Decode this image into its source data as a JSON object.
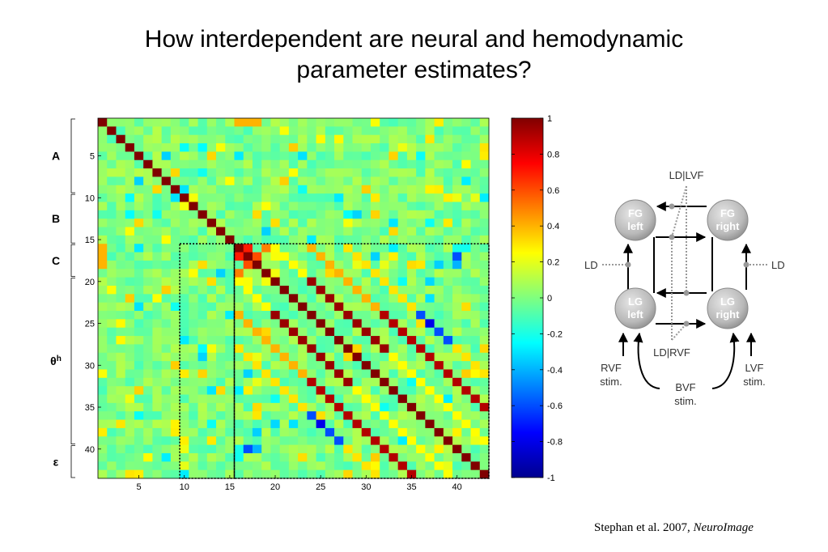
{
  "title_line1": "How interdependent are neural and hemodynamic",
  "title_line2": "parameter estimates?",
  "citation": {
    "text": "Stephan et al. 2007, ",
    "journal": "NeuroImage"
  },
  "chart_data": {
    "type": "heatmap",
    "title": "",
    "matrix_size": 43,
    "x_ticks": [
      5,
      10,
      15,
      20,
      25,
      30,
      35,
      40
    ],
    "y_ticks": [
      5,
      10,
      15,
      20,
      25,
      30,
      35,
      40
    ],
    "clim": [
      -1,
      1
    ],
    "colorbar_ticks": [
      "1",
      "0.8",
      "0.6",
      "0.4",
      "0.2",
      "0",
      "-0.2",
      "-0.4",
      "-0.6",
      "-0.8",
      "-1"
    ],
    "colormap": "jet",
    "groups": [
      {
        "label": "A",
        "from": 1,
        "to": 9
      },
      {
        "label": "B",
        "from": 10,
        "to": 15
      },
      {
        "label": "C",
        "from": 16,
        "to": 19
      },
      {
        "label": "θh",
        "from": 20,
        "to": 39
      },
      {
        "label": "ε",
        "from": 40,
        "to": 43
      }
    ],
    "diagonal_value": 1,
    "highlighted_blocks": [
      {
        "rows": [
          16,
          43
        ],
        "cols": [
          10,
          15
        ]
      },
      {
        "rows": [
          16,
          43
        ],
        "cols": [
          16,
          43
        ]
      }
    ],
    "notable_values": [
      {
        "row": 1,
        "col": 16,
        "value": 0.4
      },
      {
        "row": 1,
        "col": 17,
        "value": 0.4
      },
      {
        "row": 1,
        "col": 18,
        "value": 0.4
      },
      {
        "row": 16,
        "col": 1,
        "value": 0.4
      },
      {
        "row": 16,
        "col": 17,
        "value": 0.7
      },
      {
        "row": 17,
        "col": 18,
        "value": 0.8
      },
      {
        "row": 18,
        "col": 17,
        "value": 0.6
      },
      {
        "row": 19,
        "col": 16,
        "value": 0.5
      },
      {
        "row": 25,
        "col": 37,
        "value": -0.6
      },
      {
        "row": 26,
        "col": 38,
        "value": -0.8
      },
      {
        "row": 27,
        "col": 39,
        "value": -0.6
      },
      {
        "row": 36,
        "col": 24,
        "value": -0.6
      },
      {
        "row": 37,
        "col": 25,
        "value": -0.8
      },
      {
        "row": 38,
        "col": 26,
        "value": -0.6
      },
      {
        "row": 40,
        "col": 17,
        "value": -0.6
      },
      {
        "row": 40,
        "col": 18,
        "value": -0.4
      }
    ]
  },
  "diagram": {
    "nodes": [
      {
        "id": "fg-left",
        "line1": "FG",
        "line2": "left"
      },
      {
        "id": "fg-right",
        "line1": "FG",
        "line2": "right"
      },
      {
        "id": "lg-left",
        "line1": "LG",
        "line2": "left"
      },
      {
        "id": "lg-right",
        "line1": "LG",
        "line2": "right"
      }
    ],
    "labels": {
      "ld_lvf": "LD|LVF",
      "ld_rvf": "LD|RVF",
      "ld_left": "LD",
      "ld_right": "LD",
      "rvf_line1": "RVF",
      "rvf_line2": "stim.",
      "lvf_line1": "LVF",
      "lvf_line2": "stim.",
      "bvf_line1": "BVF",
      "bvf_line2": "stim."
    }
  }
}
